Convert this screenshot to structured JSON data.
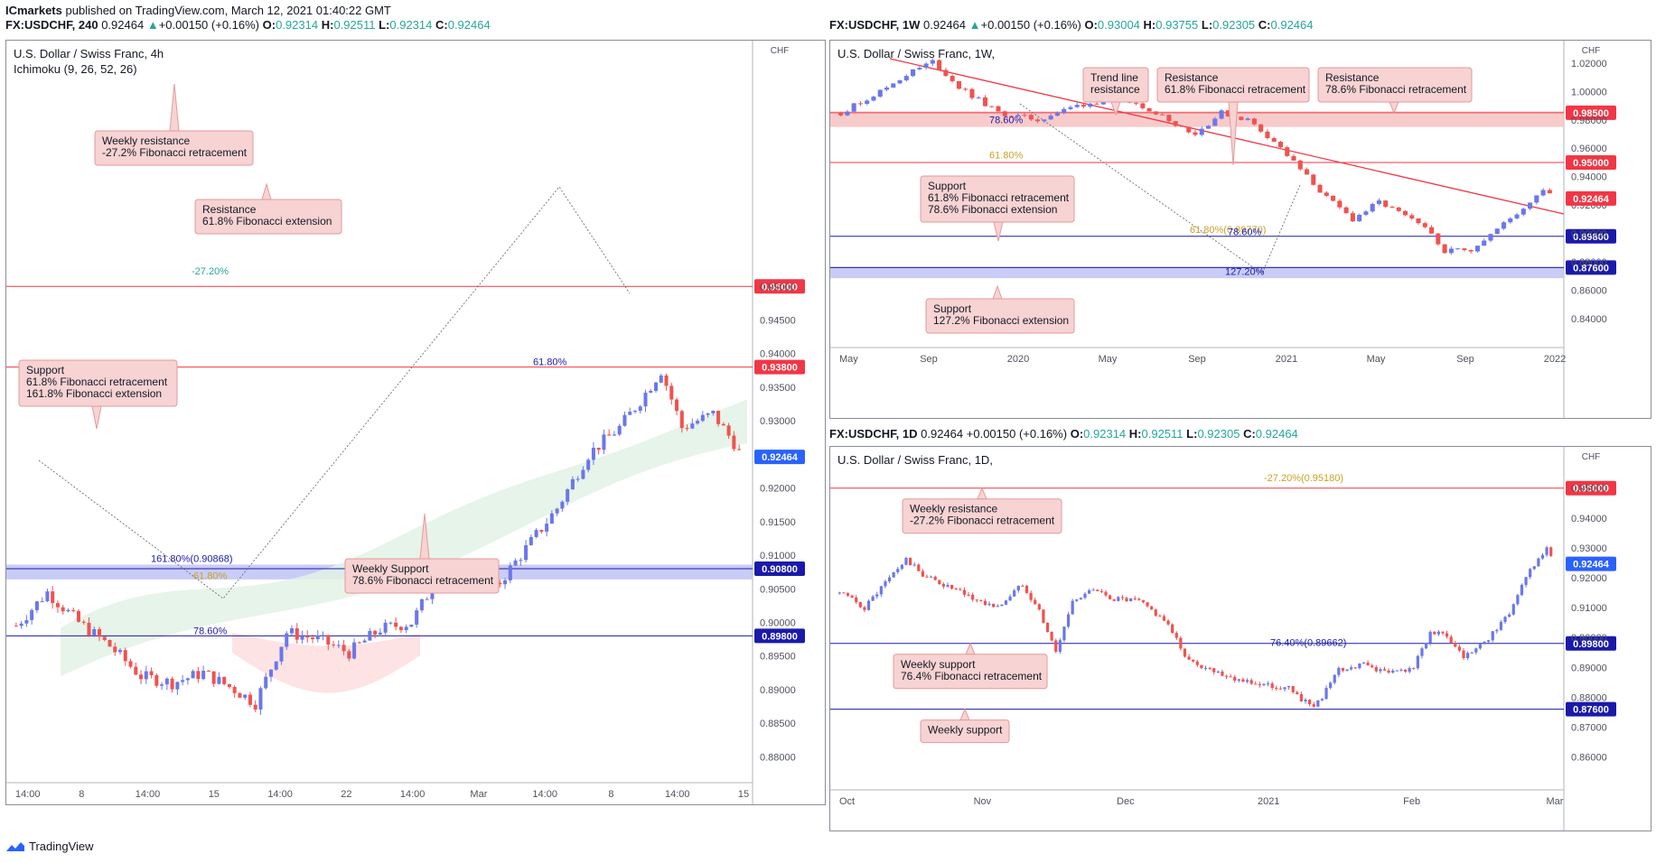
{
  "header": {
    "publisher": "ICmarkets",
    "published_text": "published on TradingView.com, March 12, 2021 01:40:22 GMT"
  },
  "footer": {
    "brand": "TradingView"
  },
  "colors": {
    "bull": "#6b78e8",
    "bear": "#ef5350",
    "resistance": "#f23645",
    "support": "#1a1aaa",
    "price_tag": "#2962ff",
    "zone_red": "#f7c5c5",
    "zone_blue": "#c3c6f5",
    "cloud_green": "#e3f2e5",
    "cloud_red": "#fde0e0",
    "label_bg": "#f7d3d3",
    "label_border": "#e59a9a"
  },
  "chart_data": [
    {
      "type": "candlestick",
      "id": "h4",
      "header": {
        "symbol": "FX:USDCHF, 240",
        "last": "0.92464",
        "change": "+0.00150 (+0.16%)",
        "o": "0.92314",
        "h": "0.92511",
        "l": "0.92314",
        "c": "0.92464"
      },
      "title": "U.S. Dollar / Swiss Franc, 4h",
      "indicator": "Ichimoku (9, 26, 52, 26)",
      "currency": "CHF",
      "ylim": [
        0.8775,
        0.9855
      ],
      "ticks": [
        "0.95000",
        "0.94500",
        "0.94000",
        "0.93500",
        "0.93000",
        "0.92500",
        "0.92000",
        "0.91500",
        "0.91000",
        "0.90500",
        "0.90000",
        "0.89500",
        "0.89000",
        "0.88500",
        "0.88000"
      ],
      "xticks": [
        "14:00",
        "8",
        "14:00",
        "15",
        "14:00",
        "22",
        "14:00",
        "Mar",
        "14:00",
        "8",
        "14:00",
        "15"
      ],
      "lines": [
        {
          "price": 0.95,
          "label": "0.95000",
          "type": "resistance"
        },
        {
          "price": 0.938,
          "label": "0.93800",
          "type": "resistance"
        },
        {
          "price": 0.908,
          "label": "0.90800",
          "type": "support"
        },
        {
          "price": 0.898,
          "label": "0.89800",
          "type": "support"
        }
      ],
      "zones": [
        {
          "from": 0.9064,
          "to": 0.9086,
          "type": "support"
        }
      ],
      "last_price": {
        "price": 0.92464,
        "label": "0.92464"
      },
      "fib_labels": [
        {
          "text": "-27.20%",
          "price": 0.9515,
          "color": "#26a69a"
        },
        {
          "text": "61.80%",
          "price": 0.938,
          "color": "#1a1aaa"
        },
        {
          "text": "161.80%(0.90868)",
          "price": 0.9087,
          "color": "#1a1aaa"
        },
        {
          "text": "61.80%",
          "price": 0.9062,
          "color": "#c9a227"
        },
        {
          "text": "78.60%",
          "price": 0.898,
          "color": "#1a1aaa"
        }
      ],
      "callouts": [
        {
          "lines": [
            "Weekly resistance",
            "-27.2% Fibonacci retracement"
          ]
        },
        {
          "lines": [
            "Resistance",
            "61.8% Fibonacci extension"
          ]
        },
        {
          "lines": [
            "Support",
            "61.8% Fibonacci retracement",
            "161.8% Fibonacci extension"
          ]
        },
        {
          "lines": [
            "Weekly Support",
            "78.6% Fibonacci retracement"
          ]
        }
      ],
      "close_path": [
        [
          0,
          0.8995
        ],
        [
          6,
          0.9045
        ],
        [
          12,
          0.9
        ],
        [
          18,
          0.8965
        ],
        [
          24,
          0.892
        ],
        [
          30,
          0.891
        ],
        [
          36,
          0.8925
        ],
        [
          42,
          0.89
        ],
        [
          46,
          0.888
        ],
        [
          52,
          0.8985
        ],
        [
          58,
          0.8975
        ],
        [
          64,
          0.8955
        ],
        [
          70,
          0.899
        ],
        [
          76,
          0.9
        ],
        [
          82,
          0.908
        ],
        [
          88,
          0.906
        ],
        [
          92,
          0.905
        ],
        [
          98,
          0.911
        ],
        [
          104,
          0.917
        ],
        [
          110,
          0.925
        ],
        [
          116,
          0.929
        ],
        [
          120,
          0.933
        ],
        [
          124,
          0.9375
        ],
        [
          128,
          0.929
        ],
        [
          134,
          0.931
        ],
        [
          140,
          0.9246
        ]
      ]
    },
    {
      "type": "candlestick",
      "id": "w1",
      "header": {
        "symbol": "FX:USDCHF, 1W",
        "last": "0.92464",
        "change": "+0.00150 (+0.16%)",
        "o": "0.93004",
        "h": "0.93755",
        "l": "0.92305",
        "c": "0.92464"
      },
      "title": "U.S. Dollar / Swiss Franc, 1W,",
      "currency": "CHF",
      "ylim": [
        0.826,
        1.032
      ],
      "ticks": [
        "1.02000",
        "1.00000",
        "0.98000",
        "0.96000",
        "0.94000",
        "0.92000",
        "0.90000",
        "0.88000",
        "0.86000",
        "0.84000"
      ],
      "xticks": [
        "May",
        "Sep",
        "2020",
        "May",
        "Sep",
        "2021",
        "May",
        "Sep",
        "2022"
      ],
      "lines": [
        {
          "price": 0.985,
          "label": "0.98500",
          "type": "resistance"
        },
        {
          "price": 0.95,
          "label": "0.95000",
          "type": "resistance"
        },
        {
          "price": 0.898,
          "label": "0.89800",
          "type": "support"
        },
        {
          "price": 0.876,
          "label": "0.87600",
          "type": "support"
        }
      ],
      "zones": [
        {
          "from": 0.975,
          "to": 0.986,
          "type": "resistance"
        },
        {
          "from": 0.8685,
          "to": 0.8765,
          "type": "support"
        }
      ],
      "last_price": {
        "price": 0.92464,
        "label": "0.92464"
      },
      "fib_labels": [
        {
          "text": "78.60%",
          "price": 0.9765,
          "color": "#1a1aaa"
        },
        {
          "text": "61.80%",
          "price": 0.9516,
          "color": "#c9a227"
        },
        {
          "text": "61.80%(0.89770)",
          "price": 0.899,
          "color": "#c9a227"
        },
        {
          "text": "78.60%",
          "price": 0.8975,
          "color": "#1a1aaa"
        },
        {
          "text": "127.20%",
          "price": 0.8695,
          "color": "#1a1aaa"
        }
      ],
      "callouts": [
        {
          "lines": [
            "Trend line",
            "resistance"
          ]
        },
        {
          "lines": [
            "Resistance",
            "61.8% Fibonacci retracement"
          ]
        },
        {
          "lines": [
            "Resistance",
            "78.6% Fibonacci retracement"
          ]
        },
        {
          "lines": [
            "Support",
            "61.8% Fibonacci retracement",
            "78.6% Fibonacci extension"
          ]
        },
        {
          "lines": [
            "Support",
            "127.2% Fibonacci extension"
          ]
        }
      ],
      "close_path": [
        [
          0,
          0.985
        ],
        [
          6,
          1.0
        ],
        [
          10,
          1.012
        ],
        [
          14,
          1.021
        ],
        [
          18,
          1.003
        ],
        [
          24,
          0.985
        ],
        [
          30,
          0.98
        ],
        [
          36,
          0.99
        ],
        [
          42,
          0.995
        ],
        [
          46,
          0.99
        ],
        [
          50,
          0.98
        ],
        [
          54,
          0.97
        ],
        [
          58,
          0.985
        ],
        [
          62,
          0.98
        ],
        [
          66,
          0.965
        ],
        [
          70,
          0.945
        ],
        [
          74,
          0.925
        ],
        [
          78,
          0.91
        ],
        [
          82,
          0.922
        ],
        [
          86,
          0.912
        ],
        [
          90,
          0.9
        ],
        [
          92,
          0.888
        ],
        [
          96,
          0.889
        ],
        [
          100,
          0.903
        ],
        [
          104,
          0.918
        ],
        [
          107,
          0.932
        ],
        [
          109,
          0.9246
        ]
      ]
    },
    {
      "type": "candlestick",
      "id": "d1",
      "header": {
        "symbol": "FX:USDCHF, 1D",
        "last": "0.92464",
        "change": "+0.00150 (+0.16%)",
        "o": "0.92314",
        "h": "0.92511",
        "l": "0.92305",
        "c": "0.92464"
      },
      "title": "U.S. Dollar / Swiss Franc, 1D,",
      "currency": "CHF",
      "ylim": [
        0.852,
        0.962
      ],
      "ticks": [
        "0.96000",
        "0.95000",
        "0.94000",
        "0.93000",
        "0.92000",
        "0.91000",
        "0.90000",
        "0.89000",
        "0.88000",
        "0.87000",
        "0.86000"
      ],
      "xticks": [
        "Oct",
        "Nov",
        "Dec",
        "2021",
        "Feb",
        "Mar"
      ],
      "lines": [
        {
          "price": 0.95,
          "label": "0.95000",
          "type": "resistance"
        },
        {
          "price": 0.898,
          "label": "0.89800",
          "type": "support"
        },
        {
          "price": 0.876,
          "label": "0.87600",
          "type": "support"
        }
      ],
      "zones": [],
      "last_price": {
        "price": 0.92464,
        "label": "0.92464"
      },
      "fib_labels": [
        {
          "text": "-27.20%(0.95180)",
          "price": 0.9518,
          "color": "#c9a227"
        },
        {
          "text": "76.40%(0.89662)",
          "price": 0.8966,
          "color": "#1a1aaa"
        }
      ],
      "callouts": [
        {
          "lines": [
            "Weekly resistance",
            "-27.2% Fibonacci retracement"
          ]
        },
        {
          "lines": [
            "Weekly support",
            "76.4% Fibonacci retracement"
          ]
        },
        {
          "lines": [
            "Weekly support"
          ]
        }
      ],
      "close_path": [
        [
          0,
          0.915
        ],
        [
          6,
          0.91
        ],
        [
          12,
          0.92
        ],
        [
          16,
          0.926
        ],
        [
          20,
          0.921
        ],
        [
          26,
          0.917
        ],
        [
          32,
          0.913
        ],
        [
          38,
          0.91
        ],
        [
          44,
          0.918
        ],
        [
          48,
          0.909
        ],
        [
          52,
          0.895
        ],
        [
          56,
          0.912
        ],
        [
          60,
          0.916
        ],
        [
          66,
          0.913
        ],
        [
          72,
          0.912
        ],
        [
          78,
          0.906
        ],
        [
          84,
          0.892
        ],
        [
          90,
          0.889
        ],
        [
          96,
          0.886
        ],
        [
          102,
          0.884
        ],
        [
          108,
          0.883
        ],
        [
          114,
          0.876
        ],
        [
          120,
          0.889
        ],
        [
          126,
          0.891
        ],
        [
          132,
          0.888
        ],
        [
          138,
          0.89
        ],
        [
          142,
          0.902
        ],
        [
          146,
          0.9
        ],
        [
          150,
          0.893
        ],
        [
          154,
          0.897
        ],
        [
          160,
          0.906
        ],
        [
          166,
          0.922
        ],
        [
          170,
          0.93
        ],
        [
          172,
          0.9246
        ]
      ]
    }
  ]
}
